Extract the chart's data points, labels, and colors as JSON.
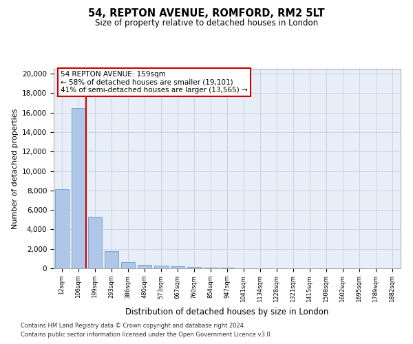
{
  "title1": "54, REPTON AVENUE, ROMFORD, RM2 5LT",
  "title2": "Size of property relative to detached houses in London",
  "xlabel": "Distribution of detached houses by size in London",
  "ylabel": "Number of detached properties",
  "categories": [
    "12sqm",
    "106sqm",
    "199sqm",
    "293sqm",
    "386sqm",
    "480sqm",
    "573sqm",
    "667sqm",
    "760sqm",
    "854sqm",
    "947sqm",
    "1041sqm",
    "1134sqm",
    "1228sqm",
    "1321sqm",
    "1415sqm",
    "1508sqm",
    "1602sqm",
    "1695sqm",
    "1789sqm",
    "1882sqm"
  ],
  "bar_heights": [
    8100,
    16500,
    5300,
    1750,
    650,
    350,
    250,
    200,
    150,
    100,
    60,
    30,
    20,
    15,
    10,
    8,
    5,
    4,
    3,
    2,
    1
  ],
  "bar_color": "#aec6e8",
  "bar_edge_color": "#5a8fc2",
  "annotation_text": "54 REPTON AVENUE: 159sqm\n← 58% of detached houses are smaller (19,101)\n41% of semi-detached houses are larger (13,565) →",
  "annotation_box_color": "#ffffff",
  "annotation_box_edgecolor": "#cc0000",
  "vline_x": 1.45,
  "vline_color": "#cc0000",
  "grid_color": "#c8d4e8",
  "background_color": "#e8eef8",
  "ylim": [
    0,
    20500
  ],
  "yticks": [
    0,
    2000,
    4000,
    6000,
    8000,
    10000,
    12000,
    14000,
    16000,
    18000,
    20000
  ],
  "footer_line1": "Contains HM Land Registry data © Crown copyright and database right 2024.",
  "footer_line2": "Contains public sector information licensed under the Open Government Licence v3.0."
}
